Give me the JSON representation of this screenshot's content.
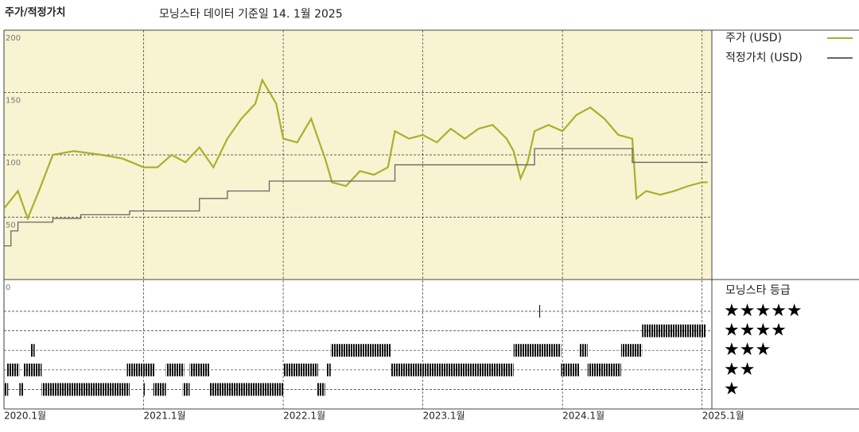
{
  "chart_data": {
    "type": "line",
    "title": "주가/적정가치",
    "subtitle": "모닝스타 데이터 기준일 14. 1월 2025",
    "series": [
      {
        "name": "주가 (USD)",
        "color": "#a9b02c",
        "x": [
          2020.0,
          2020.1,
          2020.17,
          2020.25,
          2020.35,
          2020.5,
          2020.7,
          2020.85,
          2021.0,
          2021.1,
          2021.2,
          2021.3,
          2021.4,
          2021.5,
          2021.6,
          2021.7,
          2021.8,
          2021.85,
          2021.95,
          2022.0,
          2022.1,
          2022.2,
          2022.3,
          2022.35,
          2022.45,
          2022.55,
          2022.65,
          2022.75,
          2022.8,
          2022.9,
          2023.0,
          2023.1,
          2023.2,
          2023.3,
          2023.4,
          2023.5,
          2023.6,
          2023.65,
          2023.7,
          2023.75,
          2023.8,
          2023.9,
          2024.0,
          2024.1,
          2024.2,
          2024.3,
          2024.4,
          2024.5,
          2024.53,
          2024.6,
          2024.7,
          2024.8,
          2024.9,
          2025.0,
          2025.04
        ],
        "values": [
          57,
          71,
          49,
          71,
          100,
          103,
          100,
          97,
          90,
          90,
          100,
          94,
          106,
          90,
          113,
          129,
          141,
          160,
          141,
          113,
          110,
          129,
          97,
          78,
          75,
          87,
          84,
          90,
          119,
          113,
          116,
          110,
          121,
          113,
          121,
          124,
          113,
          103,
          81,
          94,
          119,
          124,
          119,
          132,
          138,
          129,
          116,
          113,
          65,
          71,
          68,
          71,
          75,
          78,
          78
        ]
      },
      {
        "name": "적정가치 (USD)",
        "color": "#666666",
        "step": "post",
        "x": [
          2020.0,
          2020.05,
          2020.1,
          2020.35,
          2020.55,
          2020.9,
          2021.4,
          2021.6,
          2021.9,
          2022.8,
          2023.8,
          2024.5,
          2025.04
        ],
        "values": [
          27,
          39,
          46,
          49,
          52,
          55,
          65,
          71,
          79,
          92,
          105,
          94,
          94
        ]
      }
    ],
    "xlim": [
      2020,
      2025.07
    ],
    "xticks": [
      {
        "value": 2020,
        "label": "2020.1월"
      },
      {
        "value": 2021,
        "label": "2021.1월"
      },
      {
        "value": 2022,
        "label": "2022.1월"
      },
      {
        "value": 2023,
        "label": "2023.1월"
      },
      {
        "value": 2024,
        "label": "2024.1월"
      },
      {
        "value": 2025,
        "label": "2025.1월"
      }
    ],
    "ylim": [
      0,
      200
    ],
    "yticks": [
      0,
      50,
      100,
      150,
      200
    ],
    "grid": true,
    "ratings": {
      "title": "모닝스타 등급",
      "rows": [
        {
          "label": "★★★★★",
          "periods": [
            [
              2023.83,
              2023.84
            ]
          ]
        },
        {
          "label": "★★★★",
          "periods": [
            [
              2024.57,
              2025.03
            ]
          ]
        },
        {
          "label": "★★★",
          "periods": [
            [
              2020.19,
              2020.22
            ],
            [
              2022.34,
              2022.77
            ],
            [
              2023.65,
              2023.99
            ],
            [
              2024.12,
              2024.18
            ],
            [
              2024.42,
              2024.57
            ]
          ]
        },
        {
          "label": "★★",
          "periods": [
            [
              2020.02,
              2020.11
            ],
            [
              2020.14,
              2020.27
            ],
            [
              2020.88,
              2021.08
            ],
            [
              2021.16,
              2021.29
            ],
            [
              2021.33,
              2021.47
            ],
            [
              2022.0,
              2022.25
            ],
            [
              2022.31,
              2022.34
            ],
            [
              2022.77,
              2023.65
            ],
            [
              2023.99,
              2024.12
            ],
            [
              2024.18,
              2024.42
            ]
          ]
        },
        {
          "label": "★",
          "periods": [
            [
              2020.0,
              2020.03
            ],
            [
              2020.11,
              2020.14
            ],
            [
              2020.27,
              2020.9
            ],
            [
              2021.0,
              2021.01
            ],
            [
              2021.07,
              2021.16
            ],
            [
              2021.28,
              2021.33
            ],
            [
              2021.47,
              2022.0
            ],
            [
              2022.24,
              2022.3
            ]
          ]
        }
      ]
    }
  }
}
